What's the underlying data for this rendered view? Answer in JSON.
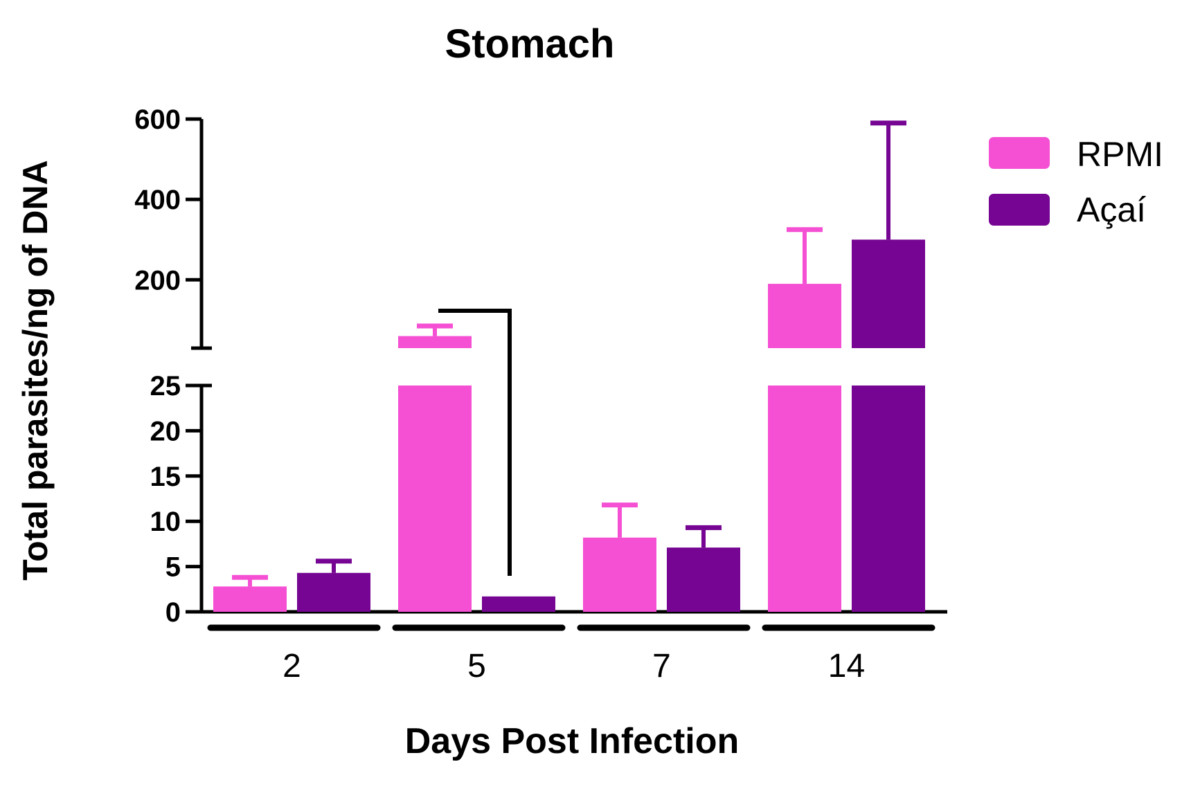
{
  "chart_data": {
    "type": "bar",
    "title": "Stomach",
    "xlabel": "Days Post Infection",
    "ylabel": "Total parasites/ng of DNA",
    "categories": [
      "2",
      "5",
      "7",
      "14"
    ],
    "series": [
      {
        "name": "RPMI",
        "color": "#f550d3",
        "values": [
          2.8,
          60,
          8.2,
          190
        ],
        "errors": [
          1.0,
          25,
          3.6,
          135
        ]
      },
      {
        "name": "Açaí",
        "color": "#750592",
        "values": [
          4.3,
          1.7,
          7.1,
          300
        ],
        "errors": [
          1.3,
          0,
          2.2,
          290
        ]
      }
    ],
    "axis_break": {
      "lower": {
        "range": [
          0,
          25
        ],
        "ticks": [
          0,
          5,
          10,
          15,
          20,
          25
        ],
        "tick_labels": [
          "0",
          "5",
          "10",
          "15",
          "20",
          "25"
        ]
      },
      "upper": {
        "range": [
          30,
          600
        ],
        "ticks": [
          200,
          400,
          600
        ],
        "tick_labels": [
          "200",
          "400",
          "600"
        ]
      }
    },
    "significance": {
      "between": [
        "RPMI day 5",
        "Açaí day 5"
      ]
    },
    "legend": {
      "placement": "top-right",
      "entries": [
        "RPMI",
        "Açaí"
      ]
    },
    "grid": false
  }
}
